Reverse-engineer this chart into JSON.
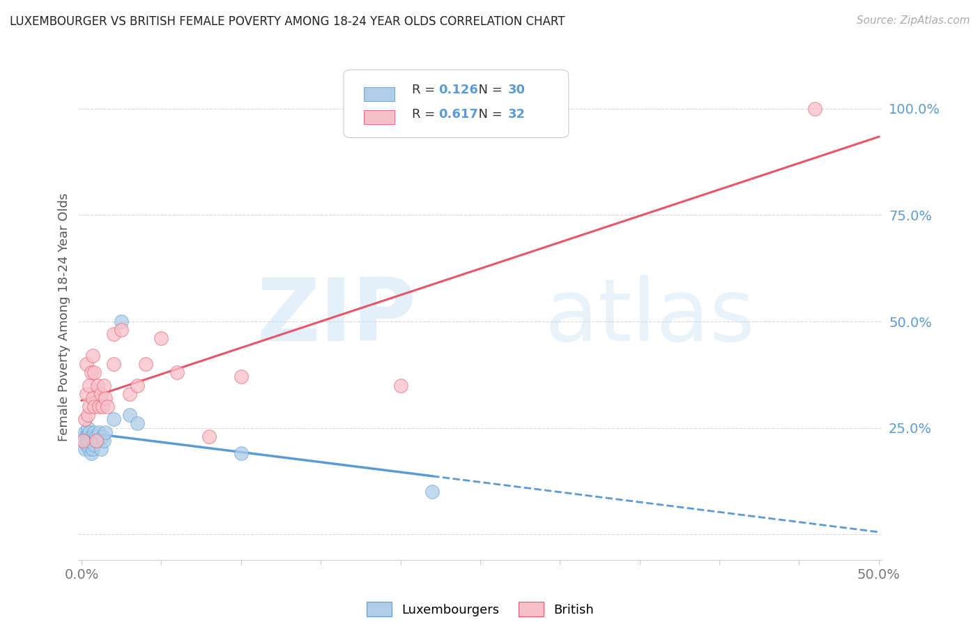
{
  "title": "LUXEMBOURGER VS BRITISH FEMALE POVERTY AMONG 18-24 YEAR OLDS CORRELATION CHART",
  "source": "Source: ZipAtlas.com",
  "watermark_zip": "ZIP",
  "watermark_atlas": "atlas",
  "legend_lux": "Luxembourgers",
  "legend_brit": "British",
  "R_lux": "0.126",
  "N_lux": "30",
  "R_brit": "0.617",
  "N_brit": "32",
  "lux_color": "#aecde8",
  "brit_color": "#f7c0c8",
  "lux_line_color": "#5b9bd5",
  "brit_line_color": "#e8546a",
  "xlim": [
    -0.002,
    0.502
  ],
  "ylim": [
    -0.06,
    1.08
  ],
  "lux_x": [
    0.001,
    0.002,
    0.002,
    0.003,
    0.003,
    0.003,
    0.004,
    0.004,
    0.005,
    0.005,
    0.005,
    0.006,
    0.006,
    0.007,
    0.007,
    0.008,
    0.008,
    0.009,
    0.01,
    0.011,
    0.012,
    0.013,
    0.014,
    0.015,
    0.02,
    0.025,
    0.03,
    0.035,
    0.1,
    0.22
  ],
  "lux_y": [
    0.22,
    0.24,
    0.2,
    0.23,
    0.22,
    0.21,
    0.25,
    0.22,
    0.24,
    0.22,
    0.2,
    0.23,
    0.19,
    0.22,
    0.2,
    0.24,
    0.21,
    0.23,
    0.22,
    0.24,
    0.2,
    0.23,
    0.22,
    0.24,
    0.27,
    0.5,
    0.28,
    0.26,
    0.19,
    0.1
  ],
  "brit_x": [
    0.001,
    0.002,
    0.003,
    0.003,
    0.004,
    0.005,
    0.005,
    0.006,
    0.007,
    0.007,
    0.008,
    0.008,
    0.009,
    0.01,
    0.011,
    0.012,
    0.013,
    0.014,
    0.015,
    0.016,
    0.02,
    0.02,
    0.025,
    0.03,
    0.035,
    0.04,
    0.05,
    0.06,
    0.08,
    0.1,
    0.2,
    0.46
  ],
  "brit_y": [
    0.22,
    0.27,
    0.33,
    0.4,
    0.28,
    0.35,
    0.3,
    0.38,
    0.32,
    0.42,
    0.3,
    0.38,
    0.22,
    0.35,
    0.3,
    0.33,
    0.3,
    0.35,
    0.32,
    0.3,
    0.4,
    0.47,
    0.48,
    0.33,
    0.35,
    0.4,
    0.46,
    0.38,
    0.23,
    0.37,
    0.35,
    1.0
  ],
  "background_color": "#ffffff",
  "grid_color": "#d8d8d8",
  "ylabel": "Female Poverty Among 18-24 Year Olds",
  "ytick_vals": [
    0.0,
    0.25,
    0.5,
    0.75,
    1.0
  ],
  "ytick_labels": [
    "",
    "25.0%",
    "50.0%",
    "75.0%",
    "100.0%"
  ]
}
